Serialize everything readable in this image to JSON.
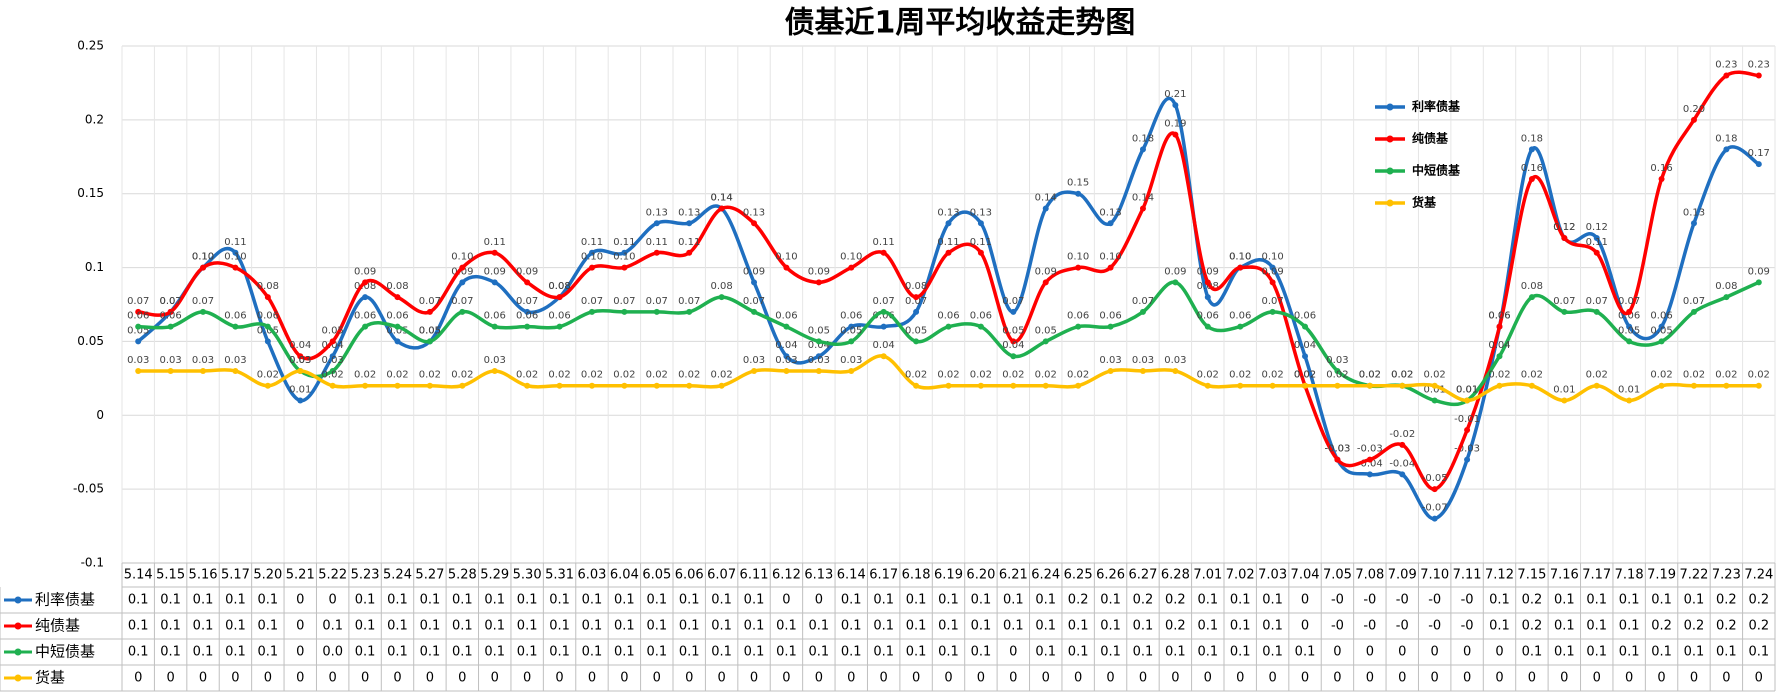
{
  "chart_data": {
    "type": "line",
    "title": "债基近1周平均收益走势图",
    "categories": [
      "5.14",
      "5.15",
      "5.16",
      "5.17",
      "5.20",
      "5.21",
      "5.22",
      "5.23",
      "5.24",
      "5.27",
      "5.28",
      "5.29",
      "5.30",
      "5.31",
      "6.03",
      "6.04",
      "6.05",
      "6.06",
      "6.07",
      "6.11",
      "6.12",
      "6.13",
      "6.14",
      "6.17",
      "6.18",
      "6.19",
      "6.20",
      "6.21",
      "6.24",
      "6.25",
      "6.26",
      "6.27",
      "6.28",
      "7.01",
      "7.02",
      "7.03",
      "7.04",
      "7.05",
      "7.08",
      "7.09",
      "7.10",
      "7.11",
      "7.12",
      "7.15",
      "7.16",
      "7.17",
      "7.18",
      "7.19",
      "7.22",
      "7.23",
      "7.24"
    ],
    "ylim": [
      -0.1,
      0.25
    ],
    "yticks": [
      -0.1,
      -0.05,
      0,
      0.05,
      0.1,
      0.15,
      0.2,
      0.25
    ],
    "grid": true,
    "smooth": true,
    "series": [
      {
        "name": "利率债基",
        "color": "#1f6fc0",
        "values": [
          0.05,
          0.07,
          0.1,
          0.11,
          0.05,
          0.01,
          0.04,
          0.08,
          0.05,
          0.05,
          0.09,
          0.09,
          0.07,
          0.08,
          0.11,
          0.11,
          0.13,
          0.13,
          0.14,
          0.09,
          0.04,
          0.04,
          0.06,
          0.06,
          0.07,
          0.13,
          0.13,
          0.07,
          0.14,
          0.15,
          0.13,
          0.18,
          0.21,
          0.08,
          0.1,
          0.1,
          0.04,
          -0.03,
          -0.04,
          -0.04,
          -0.07,
          -0.03,
          0.06,
          0.18,
          0.12,
          0.12,
          0.06,
          0.06,
          0.13,
          0.18,
          0.17
        ],
        "value_labels": [
          "0.05",
          "0.07",
          "0.10",
          "0.11",
          "0.05",
          "0.01",
          "0.04",
          "0.08",
          "0.05",
          "0.05",
          "0.09",
          "0.09",
          "0.07",
          "0.08",
          "0.11",
          "0.11",
          "0.13",
          "0.13",
          "0.14",
          "0.09",
          "0.04",
          "0.04",
          "0.06",
          "0.06",
          "0.07",
          "0.13",
          "0.13",
          "0.07",
          "0.14",
          "0.15",
          "0.13",
          "0.18",
          "0.21",
          "0.08",
          "0.10",
          "0.10",
          "0.04",
          "-0.03",
          "-0.04",
          "-0.04",
          "-0.07",
          "-0.03",
          "0.06",
          "0.18",
          "0.12",
          "0.12",
          "0.06",
          "0.06",
          "0.13",
          "0.18",
          "0.17"
        ],
        "table_labels": [
          "0.1",
          "0.1",
          "0.1",
          "0.1",
          "0.1",
          "0",
          "0",
          "0.1",
          "0.1",
          "0.1",
          "0.1",
          "0.1",
          "0.1",
          "0.1",
          "0.1",
          "0.1",
          "0.1",
          "0.1",
          "0.1",
          "0.1",
          "0",
          "0",
          "0.1",
          "0.1",
          "0.1",
          "0.1",
          "0.1",
          "0.1",
          "0.1",
          "0.2",
          "0.1",
          "0.2",
          "0.2",
          "0.1",
          "0.1",
          "0.1",
          "0",
          "-0",
          "-0",
          "-0",
          "-0",
          "-0",
          "0.1",
          "0.2",
          "0.1",
          "0.1",
          "0.1",
          "0.1",
          "0.1",
          "0.2",
          "0.2"
        ]
      },
      {
        "name": "纯债基",
        "color": "#ff0000",
        "values": [
          0.07,
          0.07,
          0.1,
          0.1,
          0.08,
          0.04,
          0.05,
          0.09,
          0.08,
          0.07,
          0.1,
          0.11,
          0.09,
          0.08,
          0.1,
          0.1,
          0.11,
          0.11,
          0.14,
          0.13,
          0.1,
          0.09,
          0.1,
          0.11,
          0.08,
          0.11,
          0.11,
          0.05,
          0.09,
          0.1,
          0.1,
          0.14,
          0.19,
          0.09,
          0.1,
          0.09,
          0.02,
          -0.03,
          -0.03,
          -0.02,
          -0.05,
          -0.01,
          0.06,
          0.16,
          0.12,
          0.11,
          0.07,
          0.16,
          0.2,
          0.23,
          0.23
        ],
        "value_labels": [
          "0.07",
          "0.07",
          "0.10",
          "0.10",
          "0.08",
          "0.04",
          "0.05",
          "0.09",
          "0.08",
          "0.07",
          "0.10",
          "0.11",
          "0.09",
          "0.08",
          "0.10",
          "0.10",
          "0.11",
          "0.11",
          "0.14",
          "0.13",
          "0.10",
          "0.09",
          "0.10",
          "0.11",
          "0.08",
          "0.11",
          "0.11",
          "0.05",
          "0.09",
          "0.10",
          "0.10",
          "0.14",
          "0.19",
          "0.09",
          "0.10",
          "0.09",
          "0.02",
          "-0.03",
          "-0.03",
          "-0.02",
          "-0.05",
          "-0.01",
          "0.06",
          "0.16",
          "0.12",
          "0.11",
          "0.07",
          "0.16",
          "0.20",
          "0.23",
          "0.23"
        ],
        "table_labels": [
          "0.1",
          "0.1",
          "0.1",
          "0.1",
          "0.1",
          "0",
          "0.1",
          "0.1",
          "0.1",
          "0.1",
          "0.1",
          "0.1",
          "0.1",
          "0.1",
          "0.1",
          "0.1",
          "0.1",
          "0.1",
          "0.1",
          "0.1",
          "0.1",
          "0.1",
          "0.1",
          "0.1",
          "0.1",
          "0.1",
          "0.1",
          "0.1",
          "0.1",
          "0.1",
          "0.1",
          "0.1",
          "0.2",
          "0.1",
          "0.1",
          "0.1",
          "0",
          "-0",
          "-0",
          "-0",
          "-0",
          "-0",
          "0.1",
          "0.2",
          "0.1",
          "0.1",
          "0.1",
          "0.2",
          "0.2",
          "0.2",
          "0.2"
        ]
      },
      {
        "name": "中短债基",
        "color": "#1fb050",
        "values": [
          0.06,
          0.06,
          0.07,
          0.06,
          0.06,
          0.03,
          0.03,
          0.06,
          0.06,
          0.05,
          0.07,
          0.06,
          0.06,
          0.06,
          0.07,
          0.07,
          0.07,
          0.07,
          0.08,
          0.07,
          0.06,
          0.05,
          0.05,
          0.07,
          0.05,
          0.06,
          0.06,
          0.04,
          0.05,
          0.06,
          0.06,
          0.07,
          0.09,
          0.06,
          0.06,
          0.07,
          0.06,
          0.03,
          0.02,
          0.02,
          0.01,
          0.01,
          0.04,
          0.08,
          0.07,
          0.07,
          0.05,
          0.05,
          0.07,
          0.08,
          0.09
        ],
        "value_labels": [
          "0.06",
          "0.06",
          "0.07",
          "0.06",
          "0.06",
          "0.03",
          "0.03",
          "0.06",
          "0.06",
          "0.05",
          "0.07",
          "0.06",
          "0.06",
          "0.06",
          "0.07",
          "0.07",
          "0.07",
          "0.07",
          "0.08",
          "0.07",
          "0.06",
          "0.05",
          "0.05",
          "0.07",
          "0.05",
          "0.06",
          "0.06",
          "0.04",
          "0.05",
          "0.06",
          "0.06",
          "0.07",
          "0.09",
          "0.06",
          "0.06",
          "0.07",
          "0.06",
          "0.03",
          "0.02",
          "0.02",
          "0.01",
          "0.01",
          "0.04",
          "0.08",
          "0.07",
          "0.07",
          "0.05",
          "0.05",
          "0.07",
          "0.08",
          "0.09"
        ],
        "table_labels": [
          "0.1",
          "0.1",
          "0.1",
          "0.1",
          "0.1",
          "0",
          "0.0",
          "0.1",
          "0.1",
          "0.1",
          "0.1",
          "0.1",
          "0.1",
          "0.1",
          "0.1",
          "0.1",
          "0.1",
          "0.1",
          "0.1",
          "0.1",
          "0.1",
          "0.1",
          "0.1",
          "0.1",
          "0.1",
          "0.1",
          "0.1",
          "0",
          "0.1",
          "0.1",
          "0.1",
          "0.1",
          "0.1",
          "0.1",
          "0.1",
          "0.1",
          "0.1",
          "0",
          "0",
          "0",
          "0",
          "0",
          "0",
          "0.1",
          "0.1",
          "0.1",
          "0.1",
          "0.1",
          "0.1",
          "0.1",
          "0.1"
        ]
      },
      {
        "name": "货基",
        "color": "#ffc000",
        "values": [
          0.03,
          0.03,
          0.03,
          0.03,
          0.02,
          0.03,
          0.02,
          0.02,
          0.02,
          0.02,
          0.02,
          0.03,
          0.02,
          0.02,
          0.02,
          0.02,
          0.02,
          0.02,
          0.02,
          0.03,
          0.03,
          0.03,
          0.03,
          0.04,
          0.02,
          0.02,
          0.02,
          0.02,
          0.02,
          0.02,
          0.03,
          0.03,
          0.03,
          0.02,
          0.02,
          0.02,
          0.02,
          0.02,
          0.02,
          0.02,
          0.02,
          0.01,
          0.02,
          0.02,
          0.01,
          0.02,
          0.01,
          0.02,
          0.02,
          0.02,
          0.02
        ],
        "value_labels": [
          "0.03",
          "0.03",
          "0.03",
          "0.03",
          "0.02",
          "0.03",
          "0.02",
          "0.02",
          "0.02",
          "0.02",
          "0.02",
          "0.03",
          "0.02",
          "0.02",
          "0.02",
          "0.02",
          "0.02",
          "0.02",
          "0.02",
          "0.03",
          "0.03",
          "0.03",
          "0.03",
          "0.04",
          "0.02",
          "0.02",
          "0.02",
          "0.02",
          "0.02",
          "0.02",
          "0.03",
          "0.03",
          "0.03",
          "0.02",
          "0.02",
          "0.02",
          "0.02",
          "0.02",
          "0.02",
          "0.02",
          "0.02",
          "0.01",
          "0.02",
          "0.02",
          "0.01",
          "0.02",
          "0.01",
          "0.02",
          "0.02",
          "0.02",
          "0.02"
        ],
        "table_labels": [
          "0",
          "0",
          "0",
          "0",
          "0",
          "0",
          "0",
          "0",
          "0",
          "0",
          "0",
          "0",
          "0",
          "0",
          "0",
          "0",
          "0",
          "0",
          "0",
          "0",
          "0",
          "0",
          "0",
          "0",
          "0",
          "0",
          "0",
          "0",
          "0",
          "0",
          "0",
          "0",
          "0",
          "0",
          "0",
          "0",
          "0",
          "0",
          "0",
          "0",
          "0",
          "0",
          "0",
          "0",
          "0",
          "0",
          "0",
          "0",
          "0",
          "0",
          "0"
        ]
      }
    ]
  }
}
